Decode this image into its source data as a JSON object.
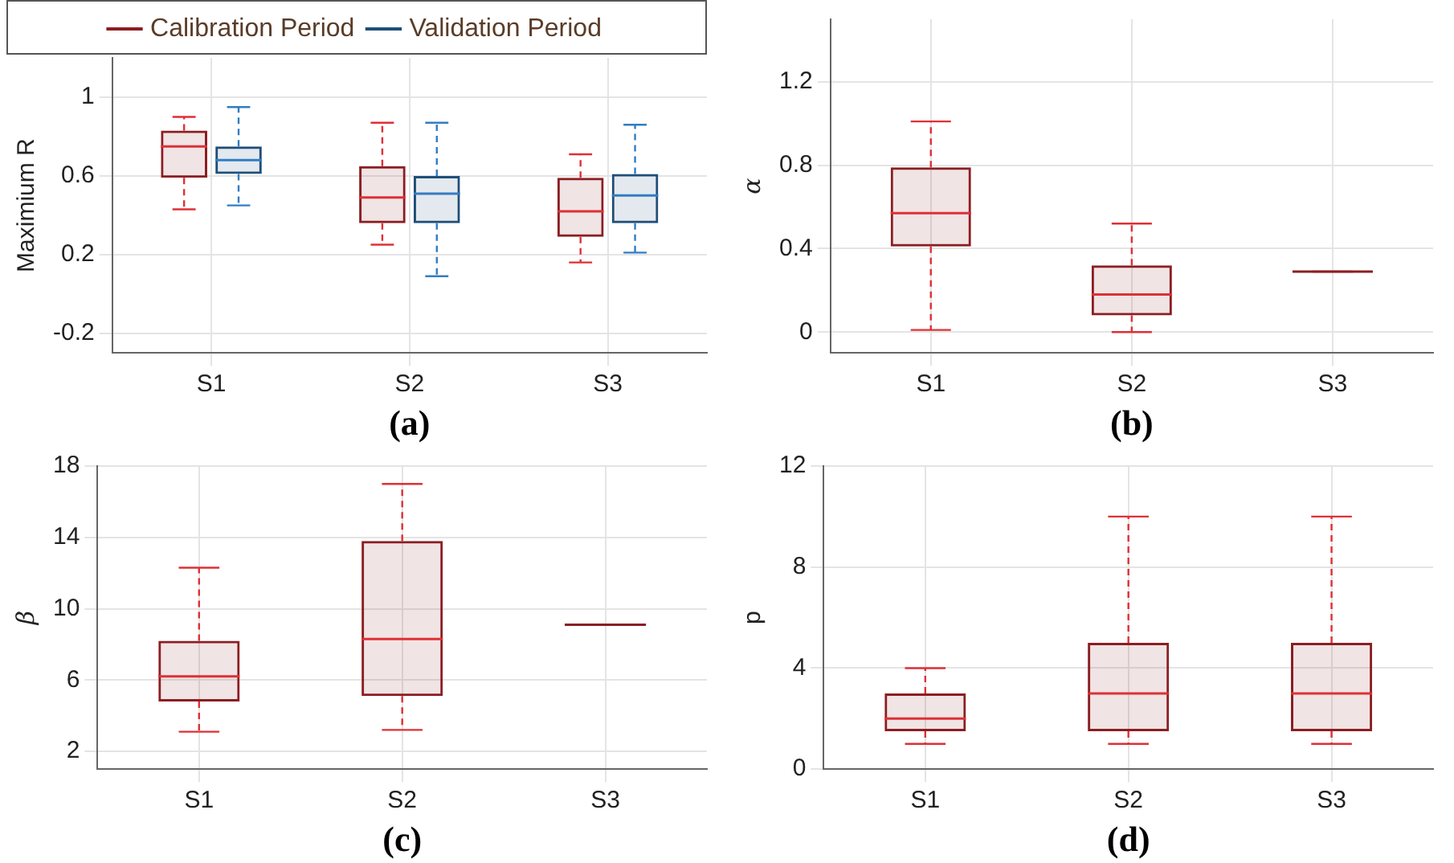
{
  "chart_data": [
    {
      "type": "box",
      "categories": [
        "S1",
        "S2",
        "S3"
      ],
      "ylabel": "Maximium R",
      "xlabel": "(a)",
      "ylim": [
        -0.3,
        1.2
      ],
      "yticks": [
        -0.2,
        0.2,
        0.6,
        1
      ],
      "grid": true,
      "legend": "top",
      "series": [
        {
          "name": "Calibration Period",
          "color": "#8b1e22",
          "boxes": [
            {
              "low": 0.43,
              "q1": 0.59,
              "median": 0.75,
              "q3": 0.83,
              "high": 0.9
            },
            {
              "low": 0.25,
              "q1": 0.36,
              "median": 0.49,
              "q3": 0.65,
              "high": 0.87
            },
            {
              "low": 0.16,
              "q1": 0.29,
              "median": 0.42,
              "q3": 0.59,
              "high": 0.71
            }
          ]
        },
        {
          "name": "Validation Period",
          "color": "#1f4e79",
          "boxes": [
            {
              "low": 0.45,
              "q1": 0.61,
              "median": 0.68,
              "q3": 0.75,
              "high": 0.95
            },
            {
              "low": 0.09,
              "q1": 0.36,
              "median": 0.51,
              "q3": 0.6,
              "high": 0.87
            },
            {
              "low": 0.21,
              "q1": 0.36,
              "median": 0.5,
              "q3": 0.61,
              "high": 0.86
            }
          ]
        }
      ]
    },
    {
      "type": "box",
      "categories": [
        "S1",
        "S2",
        "S3"
      ],
      "ylabel": "α",
      "xlabel": "(b)",
      "ylim": [
        -0.1,
        1.5
      ],
      "yticks": [
        0,
        0.4,
        0.8,
        1.2
      ],
      "grid": true,
      "series": [
        {
          "color": "#8b1e22",
          "boxes": [
            {
              "low": 0.01,
              "q1": 0.41,
              "median": 0.57,
              "q3": 0.79,
              "high": 1.01
            },
            {
              "low": 0,
              "q1": 0.08,
              "median": 0.18,
              "q3": 0.32,
              "high": 0.52
            },
            {
              "low": 0.29,
              "q1": 0.29,
              "median": 0.29,
              "q3": 0.29,
              "high": 0.29
            }
          ]
        }
      ]
    },
    {
      "type": "box",
      "categories": [
        "S1",
        "S2",
        "S3"
      ],
      "ylabel": "β",
      "xlabel": "(c)",
      "ylim": [
        1,
        18
      ],
      "yticks": [
        2,
        6,
        10,
        14,
        18
      ],
      "grid": true,
      "series": [
        {
          "color": "#8b1e22",
          "boxes": [
            {
              "low": 3.1,
              "q1": 4.8,
              "median": 6.2,
              "q3": 8.2,
              "high": 12.3
            },
            {
              "low": 3.2,
              "q1": 5.1,
              "median": 8.3,
              "q3": 13.8,
              "high": 17
            },
            {
              "low": 9.1,
              "q1": 9.1,
              "median": 9.1,
              "q3": 9.1,
              "high": 9.1
            }
          ]
        }
      ]
    },
    {
      "type": "box",
      "categories": [
        "S1",
        "S2",
        "S3"
      ],
      "ylabel": "p",
      "xlabel": "(d)",
      "ylim": [
        0,
        12
      ],
      "yticks": [
        0,
        4,
        8,
        12
      ],
      "grid": true,
      "series": [
        {
          "color": "#8b1e22",
          "boxes": [
            {
              "low": 1,
              "q1": 1.5,
              "median": 2,
              "q3": 3,
              "high": 4
            },
            {
              "low": 1,
              "q1": 1.5,
              "median": 3,
              "q3": 5,
              "high": 10
            },
            {
              "low": 1,
              "q1": 1.5,
              "median": 3,
              "q3": 5,
              "high": 10
            }
          ]
        }
      ]
    }
  ]
}
